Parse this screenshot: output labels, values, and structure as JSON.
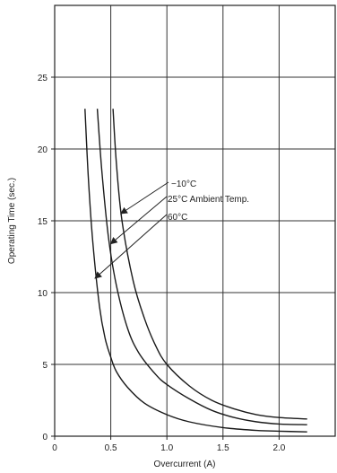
{
  "chart_data": {
    "type": "line",
    "xlabel": "Overcurrent (A)",
    "ylabel": "Operating Time (sec.)",
    "xlim": [
      0,
      2.5
    ],
    "ylim": [
      0,
      30
    ],
    "x_ticks": [
      0,
      0.5,
      1.0,
      1.5,
      2.0
    ],
    "x_tick_labels": [
      "0",
      "0.5",
      "1.0",
      "1.5",
      "2.0"
    ],
    "y_ticks": [
      0,
      5,
      10,
      15,
      20,
      25
    ],
    "y_tick_labels": [
      "0",
      "5",
      "10",
      "15",
      "20",
      "25"
    ],
    "grid": true,
    "series": [
      {
        "name": "-10°C",
        "x": [
          0.52,
          0.55,
          0.6,
          0.7,
          0.8,
          0.9,
          1.0,
          1.2,
          1.4,
          1.6,
          1.8,
          2.0,
          2.25
        ],
        "y": [
          22.8,
          19.0,
          15.0,
          10.8,
          8.2,
          6.3,
          5.0,
          3.5,
          2.5,
          1.9,
          1.5,
          1.3,
          1.2
        ]
      },
      {
        "name": "25°C",
        "x": [
          0.38,
          0.42,
          0.48,
          0.55,
          0.65,
          0.75,
          0.9,
          1.0,
          1.2,
          1.4,
          1.6,
          1.8,
          2.0,
          2.25
        ],
        "y": [
          22.8,
          18.5,
          13.8,
          10.5,
          7.5,
          5.8,
          4.3,
          3.6,
          2.6,
          1.8,
          1.3,
          1.0,
          0.85,
          0.8
        ]
      },
      {
        "name": "60°C",
        "x": [
          0.27,
          0.3,
          0.34,
          0.4,
          0.45,
          0.5,
          0.55,
          0.65,
          0.8,
          1.0,
          1.2,
          1.5,
          1.8,
          2.0,
          2.25
        ],
        "y": [
          22.8,
          18.0,
          13.5,
          9.0,
          6.8,
          5.5,
          4.5,
          3.4,
          2.3,
          1.5,
          1.0,
          0.6,
          0.4,
          0.35,
          0.3
        ]
      }
    ],
    "annotations": [
      {
        "text": "−10°C",
        "series": 0,
        "arrow_to": [
          0.59,
          15.5
        ]
      },
      {
        "text": "25°C Ambient Temp.",
        "series": 1,
        "arrow_to": [
          0.5,
          13.4
        ]
      },
      {
        "text": "60°C",
        "series": 2,
        "arrow_to": [
          0.36,
          11.0
        ]
      }
    ]
  }
}
